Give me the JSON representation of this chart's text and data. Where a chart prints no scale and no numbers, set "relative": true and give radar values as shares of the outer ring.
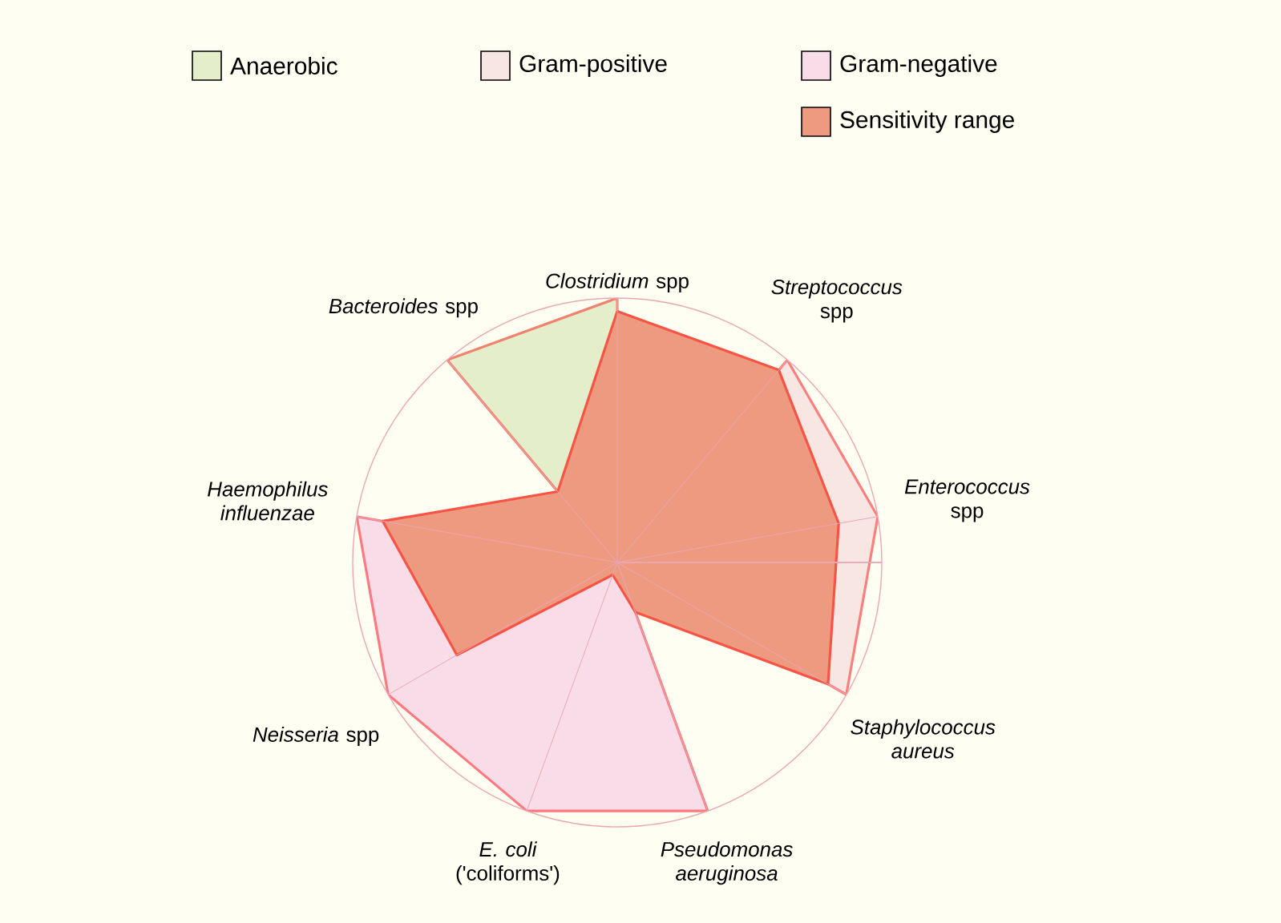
{
  "chart_data": {
    "type": "radar",
    "relative": true,
    "legend": "top",
    "grid": true,
    "categories": [
      "*Clostridium* spp",
      "*Streptococcus* spp",
      "*Enterococcus* spp",
      "*Staphylococcus aureus*",
      "*Pseudomonas aeruginosa*",
      "*E. coli* ('coliforms')",
      "*Neisseria* spp",
      "*Haemophilus influenzae*",
      "*Bacteroides* spp"
    ],
    "series": [
      {
        "name": "Anaerobic",
        "color": "#e4eecb",
        "values": [
          1,
          0,
          0,
          0,
          0,
          0,
          0,
          0,
          1
        ]
      },
      {
        "name": "Gram-positive",
        "color": "#f7e6e2",
        "values": [
          0,
          1,
          1,
          1,
          0,
          0,
          0,
          0,
          0
        ]
      },
      {
        "name": "Gram-negative",
        "color": "#f8dde8",
        "values": [
          0,
          0,
          0,
          0,
          1,
          1,
          1,
          1,
          0
        ]
      },
      {
        "name": "Sensitivity range",
        "color": "#ee9a80",
        "values": [
          0.95,
          0.95,
          0.85,
          0.92,
          0.2,
          0.05,
          0.7,
          0.9,
          0.35
        ]
      }
    ]
  }
}
